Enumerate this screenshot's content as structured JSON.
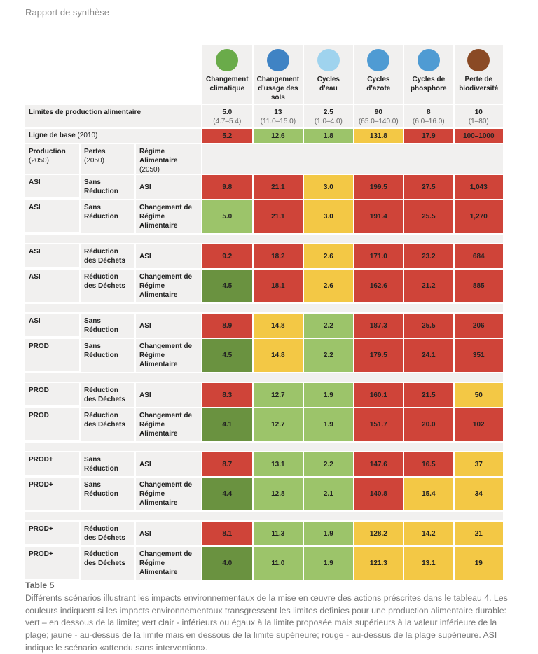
{
  "running_header": "Rapport de synthèse",
  "colors": {
    "r": "#cf4439",
    "lg": "#9cc46a",
    "dg": "#6a9240",
    "y": "#f3c845"
  },
  "columns": [
    {
      "label": "Changement climatique",
      "icon": "globe-icon",
      "color": "#6aab4a",
      "limit": "5.0",
      "range": "(4.7–5.4)",
      "baseline": "5.2",
      "baseline_color": "r"
    },
    {
      "label": "Changement d'usage des sols",
      "icon": "wheat-icon",
      "color": "#3f83c4",
      "limit": "13",
      "range": "(11.0–15.0)",
      "baseline": "12.6",
      "baseline_color": "lg"
    },
    {
      "label": "Cycles d'eau",
      "icon": "water-drops-icon",
      "color": "#9fd3ee",
      "limit": "2.5",
      "range": "(1.0–4.0)",
      "baseline": "1.8",
      "baseline_color": "lg"
    },
    {
      "label": "Cycles d'azote",
      "icon": "tractor-icon",
      "color": "#4f9bd3",
      "limit": "90",
      "range": "(65.0–140.0)",
      "baseline": "131.8",
      "baseline_color": "y"
    },
    {
      "label": "Cycles de phosphore",
      "icon": "tractor-icon",
      "color": "#4f9bd3",
      "limit": "8",
      "range": "(6.0–16.0)",
      "baseline": "17.9",
      "baseline_color": "r"
    },
    {
      "label": "Perte de biodiversité",
      "icon": "orangutan-icon",
      "color": "#8a4a25",
      "limit": "10",
      "range": "(1–80)",
      "baseline": "100–1000",
      "baseline_color": "r"
    }
  ],
  "limits_label": "Limites de production alimentaire",
  "baseline_label": "Ligne de base",
  "baseline_year": "(2010)",
  "subheaders": [
    {
      "title": "Production",
      "sub": "(2050)"
    },
    {
      "title": "Pertes",
      "sub": "(2050)"
    },
    {
      "title": "Régime Alimentaire",
      "sub": "(2050)"
    }
  ],
  "rows": [
    {
      "prod": "ASI",
      "pertes": "Sans Réduction",
      "regime": "ASI",
      "values": [
        "9.8",
        "21.1",
        "3.0",
        "199.5",
        "27.5",
        "1,043"
      ],
      "colors": [
        "r",
        "r",
        "y",
        "r",
        "r",
        "r"
      ]
    },
    {
      "prod": "ASI",
      "pertes": "Sans Réduction",
      "regime": "Changement de Régime Alimentaire",
      "values": [
        "5.0",
        "21.1",
        "3.0",
        "191.4",
        "25.5",
        "1,270"
      ],
      "colors": [
        "lg",
        "r",
        "y",
        "r",
        "r",
        "r"
      ]
    },
    {
      "prod": "ASI",
      "pertes": "Réduction des Déchets",
      "regime": "ASI",
      "values": [
        "9.2",
        "18.2",
        "2.6",
        "171.0",
        "23.2",
        "684"
      ],
      "colors": [
        "r",
        "r",
        "y",
        "r",
        "r",
        "r"
      ]
    },
    {
      "prod": "ASI",
      "pertes": "Réduction des Déchets",
      "regime": "Changement de Régime Alimentaire",
      "values": [
        "4.5",
        "18.1",
        "2.6",
        "162.6",
        "21.2",
        "885"
      ],
      "colors": [
        "dg",
        "r",
        "y",
        "r",
        "r",
        "r"
      ]
    },
    {
      "prod": "ASI",
      "pertes": "Sans Réduction",
      "regime": "ASI",
      "values": [
        "8.9",
        "14.8",
        "2.2",
        "187.3",
        "25.5",
        "206"
      ],
      "colors": [
        "r",
        "y",
        "lg",
        "r",
        "r",
        "r"
      ]
    },
    {
      "prod": "PROD",
      "pertes": "Sans Réduction",
      "regime": "Changement de Régime Alimentaire",
      "values": [
        "4.5",
        "14.8",
        "2.2",
        "179.5",
        "24.1",
        "351"
      ],
      "colors": [
        "dg",
        "y",
        "lg",
        "r",
        "r",
        "r"
      ]
    },
    {
      "prod": "PROD",
      "pertes": "Réduction des Déchets",
      "regime": "ASI",
      "values": [
        "8.3",
        "12.7",
        "1.9",
        "160.1",
        "21.5",
        "50"
      ],
      "colors": [
        "r",
        "lg",
        "lg",
        "r",
        "r",
        "y"
      ]
    },
    {
      "prod": "PROD",
      "pertes": "Réduction des Déchets",
      "regime": "Changement de Régime Alimentaire",
      "values": [
        "4.1",
        "12.7",
        "1.9",
        "151.7",
        "20.0",
        "102"
      ],
      "colors": [
        "dg",
        "lg",
        "lg",
        "r",
        "r",
        "r"
      ]
    },
    {
      "prod": "PROD+",
      "pertes": "Sans Réduction",
      "regime": "ASI",
      "values": [
        "8.7",
        "13.1",
        "2.2",
        "147.6",
        "16.5",
        "37"
      ],
      "colors": [
        "r",
        "lg",
        "lg",
        "r",
        "r",
        "y"
      ]
    },
    {
      "prod": "PROD+",
      "pertes": "Sans Réduction",
      "regime": "Changement de Régime Alimentaire",
      "values": [
        "4.4",
        "12.8",
        "2.1",
        "140.8",
        "15.4",
        "34"
      ],
      "colors": [
        "dg",
        "lg",
        "lg",
        "r",
        "y",
        "y"
      ]
    },
    {
      "prod": "PROD+",
      "pertes": "Réduction des Déchets",
      "regime": "ASI",
      "values": [
        "8.1",
        "11.3",
        "1.9",
        "128.2",
        "14.2",
        "21"
      ],
      "colors": [
        "r",
        "lg",
        "lg",
        "y",
        "y",
        "y"
      ]
    },
    {
      "prod": "PROD+",
      "pertes": "Réduction des Déchets",
      "regime": "Changement de Régime Alimentaire",
      "values": [
        "4.0",
        "11.0",
        "1.9",
        "121.3",
        "13.1",
        "19"
      ],
      "colors": [
        "dg",
        "lg",
        "lg",
        "y",
        "y",
        "y"
      ]
    }
  ],
  "caption": {
    "title": "Table 5",
    "text": "Différents scénarios illustrant les impacts environnementaux de la mise en œuvre des actions préscrites dans le tableau 4. Les couleurs indiquent si les impacts environnementaux transgressent les limites definies pour une production alimentaire durable: vert – en dessous de la limite; vert clair - inférieurs ou égaux à la limite proposée mais supérieurs à la valeur inférieure de la plage; jaune - au-dessus de la limite mais en dessous de la limite supérieure; rouge - au-dessus de la plage supérieure. ASI indique le scénario «attendu sans intervention»."
  }
}
